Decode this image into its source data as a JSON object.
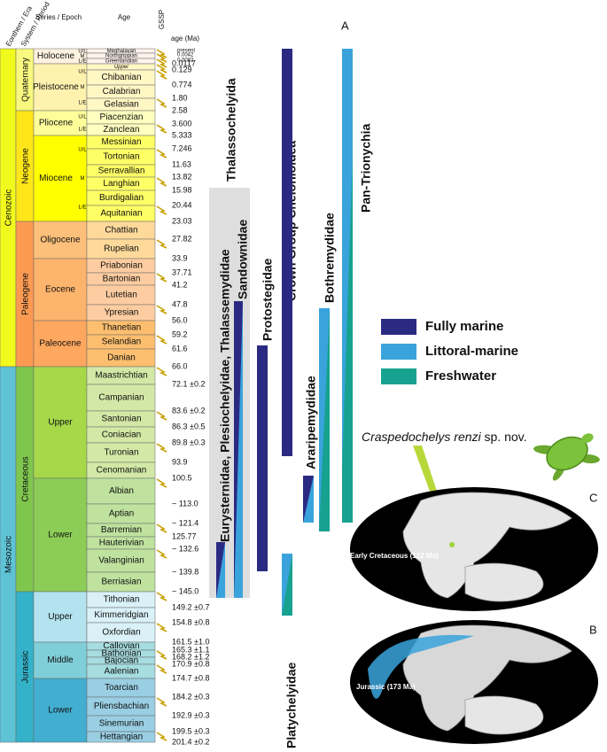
{
  "header": {
    "era": "Eonthem / Era",
    "period": "System / Period",
    "epoch": "Series / Epoch",
    "age": "Age",
    "gssp": "GSSP",
    "age_ma": "age (Ma)"
  },
  "eras": [
    {
      "label": "Cenozoic"
    },
    {
      "label": "Mesozoic"
    }
  ],
  "periods": [
    {
      "label": "Quaternary"
    },
    {
      "label": "Neogene"
    },
    {
      "label": "Paleogene"
    },
    {
      "label": "Cretaceous"
    },
    {
      "label": "Jurassic"
    }
  ],
  "epochs": [
    {
      "label": "Holocene",
      "divisions": [
        "U/L",
        "M",
        "L/E"
      ]
    },
    {
      "label": "Pleistocene",
      "divisions": [
        "U/L",
        "M",
        "L/E"
      ]
    },
    {
      "label": "Pliocene",
      "divisions": [
        "U/L",
        "L/E"
      ]
    },
    {
      "label": "Miocene",
      "divisions": [
        "U/L",
        "M",
        "L/E"
      ]
    },
    {
      "label": "Oligocene",
      "divisions": []
    },
    {
      "label": "Eocene",
      "divisions": []
    },
    {
      "label": "Paleocene",
      "divisions": []
    },
    {
      "label": "Upper",
      "divisions": []
    },
    {
      "label": "Lower",
      "divisions": []
    },
    {
      "label": "Upper",
      "divisions": []
    },
    {
      "label": "Middle",
      "divisions": []
    },
    {
      "label": "Lower",
      "divisions": []
    }
  ],
  "stages": [
    "Meghalayan",
    "Northgrippian",
    "Greenlandian",
    "Upper",
    "Chibanian",
    "Calabrian",
    "Gelasian",
    "Piacenzian",
    "Zanclean",
    "Messinian",
    "Tortonian",
    "Serravallian",
    "Langhian",
    "Burdigalian",
    "Aquitanian",
    "Chattian",
    "Rupelian",
    "Priabonian",
    "Bartonian",
    "Lutetian",
    "Ypresian",
    "Thanetian",
    "Selandian",
    "Danian",
    "Maastrichtian",
    "Campanian",
    "Santonian",
    "Coniacian",
    "Turonian",
    "Cenomanian",
    "Albian",
    "Aptian",
    "Barremian",
    "Hauterivian",
    "Valanginian",
    "Berriasian",
    "Tithonian",
    "Kimmeridgian",
    "Oxfordian",
    "Callovian",
    "Bathonian",
    "Bajocian",
    "Aalenian",
    "Toarcian",
    "Pliensbachian",
    "Sinemurian",
    "Hettangian"
  ],
  "ages": [
    "present",
    "0.0042",
    "0.0082",
    "0.0117",
    "0.129",
    "0.774",
    "1.80",
    "2.58",
    "3.600",
    "5.333",
    "7.246",
    "11.63",
    "13.82",
    "15.98",
    "20.44",
    "23.03",
    "27.82",
    "33.9",
    "37.71",
    "41.2",
    "47.8",
    "56.0",
    "59.2",
    "61.6",
    "66.0",
    "72.1 ±0.2",
    "83.6 ±0.2",
    "86.3 ±0.5",
    "89.8 ±0.3",
    "93.9",
    "100.5",
    "~ 113.0",
    "~ 121.4",
    "125.77",
    "~ 132.6",
    "~ 139.8",
    "~ 145.0",
    "149.2 ±0.7",
    "154.8 ±0.8",
    "161.5 ±1.0",
    "165.3 ±1.1",
    "168.2 ±1.2",
    "170.9 ±0.8",
    "174.7 ±0.8",
    "184.2 ±0.3",
    "192.9 ±0.3",
    "199.5 ±0.3",
    "201.4 ±0.2"
  ],
  "panel_a": {
    "label": "A",
    "clades": [
      "Thalassochelyida",
      "Eurysternidae, Plesiochelyidae, Thalassemydidae",
      "Sandownidae",
      "Protostegidae",
      "Crown Group Chelonioidea",
      "Araripemydidae",
      "Bothremydidae",
      "Pan-Trionychia",
      "Platychelyidae"
    ]
  },
  "legend": [
    "Fully marine",
    "Littoral-marine",
    "Freshwater"
  ],
  "species": {
    "name": "Craspedochelys renzi",
    "suffix": "sp. nov."
  },
  "maps": [
    {
      "panel": "C",
      "label": "Early Cretaceous (122 Ma)"
    },
    {
      "panel": "B",
      "label": "Jurassic (173 Ma)"
    }
  ]
}
